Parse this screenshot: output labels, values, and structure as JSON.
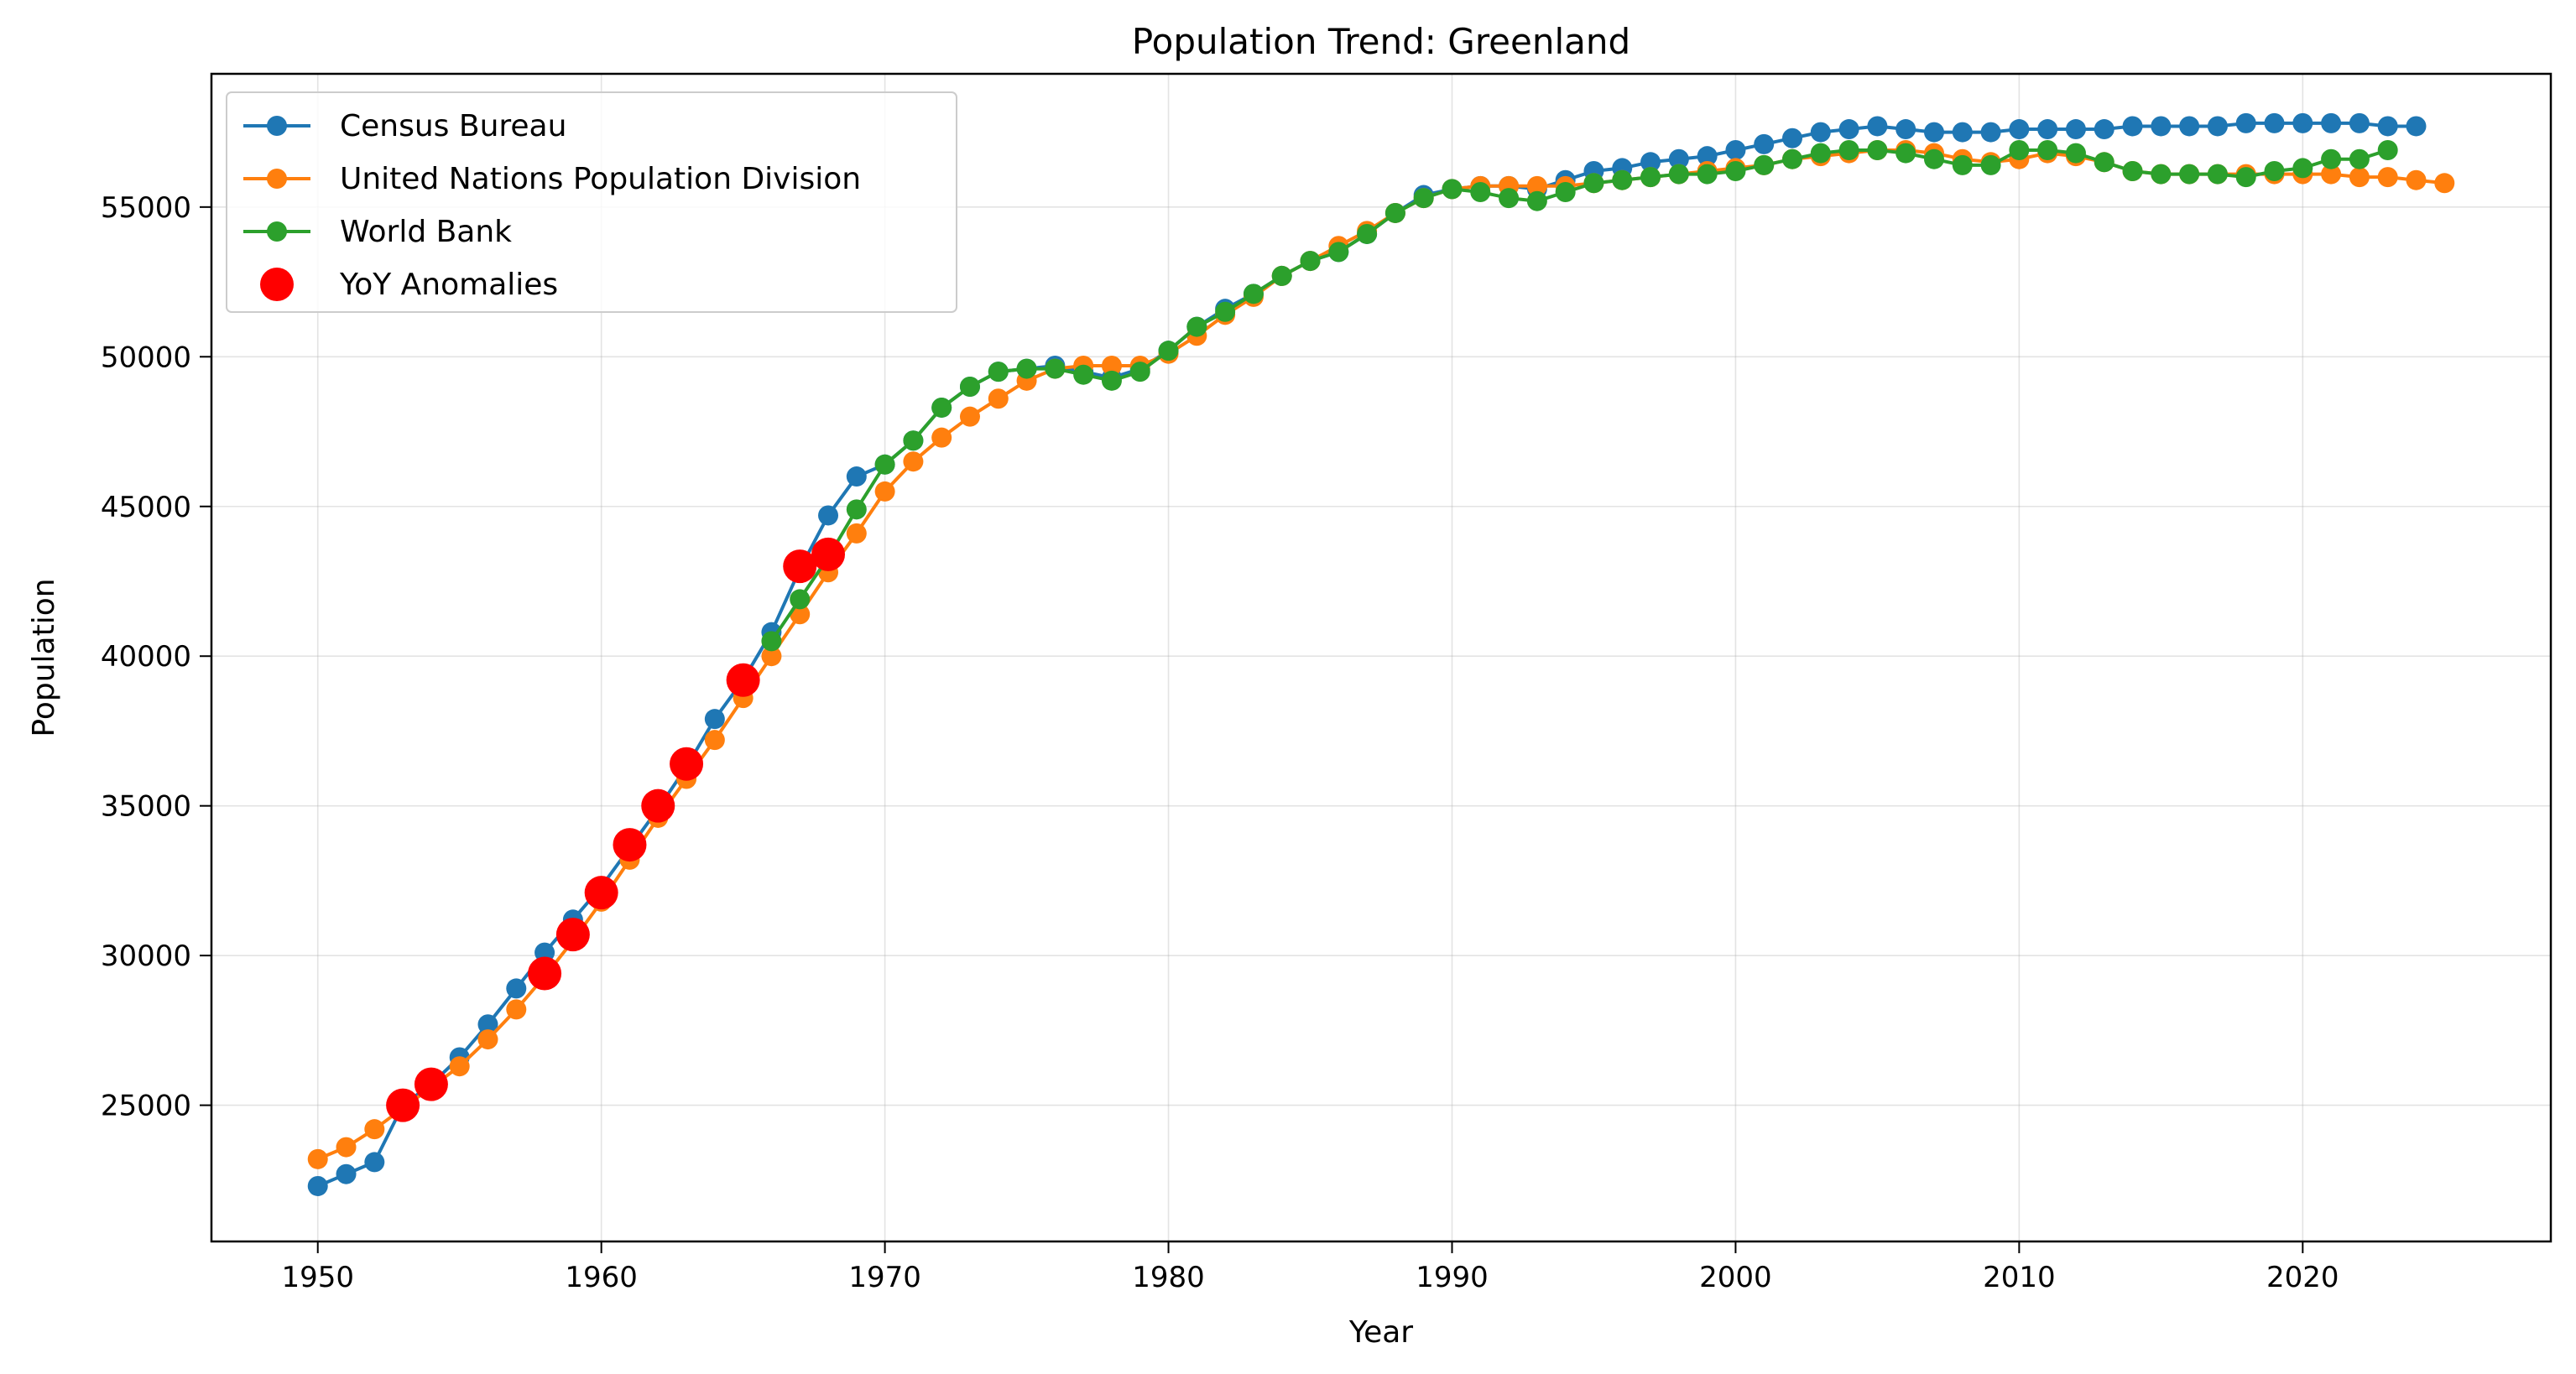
{
  "chart_data": {
    "type": "line",
    "title": "Population Trend: Greenland",
    "xlabel": "Year",
    "ylabel": "Population",
    "xlim": [
      1946.25,
      2028.75
    ],
    "ylim": [
      20450,
      59450
    ],
    "x_ticks": [
      1950,
      1960,
      1970,
      1980,
      1990,
      2000,
      2010,
      2020
    ],
    "y_ticks": [
      25000,
      30000,
      35000,
      40000,
      45000,
      50000,
      55000
    ],
    "grid": true,
    "legend_position": "top-left",
    "series": [
      {
        "name": "Census Bureau",
        "color": "#1f77b4",
        "x": [
          1950,
          1951,
          1952,
          1953,
          1954,
          1955,
          1956,
          1957,
          1958,
          1959,
          1960,
          1961,
          1962,
          1963,
          1964,
          1965,
          1966,
          1967,
          1968,
          1969,
          1970,
          1971,
          1972,
          1973,
          1974,
          1975,
          1976,
          1977,
          1978,
          1979,
          1980,
          1981,
          1982,
          1983,
          1984,
          1985,
          1986,
          1987,
          1988,
          1989,
          1990,
          1991,
          1992,
          1993,
          1994,
          1995,
          1996,
          1997,
          1998,
          1999,
          2000,
          2001,
          2002,
          2003,
          2004,
          2005,
          2006,
          2007,
          2008,
          2009,
          2010,
          2011,
          2012,
          2013,
          2014,
          2015,
          2016,
          2017,
          2018,
          2019,
          2020,
          2021,
          2022,
          2023,
          2024
        ],
        "y": [
          22300,
          22700,
          23100,
          25000,
          25700,
          26600,
          27700,
          28900,
          30100,
          31200,
          32300,
          33600,
          34900,
          36300,
          37900,
          39200,
          40800,
          42900,
          44700,
          46000,
          46400,
          47200,
          48300,
          49000,
          49500,
          49600,
          49700,
          49500,
          49300,
          49600,
          50200,
          51000,
          51600,
          52100,
          52700,
          53200,
          53500,
          54100,
          54800,
          55400,
          55600,
          55700,
          55700,
          55600,
          55900,
          56200,
          56300,
          56500,
          56600,
          56700,
          56900,
          57100,
          57300,
          57500,
          57600,
          57700,
          57600,
          57500,
          57500,
          57500,
          57600,
          57600,
          57600,
          57600,
          57700,
          57700,
          57700,
          57700,
          57800,
          57800,
          57800,
          57800,
          57800,
          57700,
          57700
        ]
      },
      {
        "name": "United Nations Population Division",
        "color": "#ff7f0e",
        "x": [
          1950,
          1951,
          1952,
          1953,
          1954,
          1955,
          1956,
          1957,
          1958,
          1959,
          1960,
          1961,
          1962,
          1963,
          1964,
          1965,
          1966,
          1967,
          1968,
          1969,
          1970,
          1971,
          1972,
          1973,
          1974,
          1975,
          1976,
          1977,
          1978,
          1979,
          1980,
          1981,
          1982,
          1983,
          1984,
          1985,
          1986,
          1987,
          1988,
          1989,
          1990,
          1991,
          1992,
          1993,
          1994,
          1995,
          1996,
          1997,
          1998,
          1999,
          2000,
          2001,
          2002,
          2003,
          2004,
          2005,
          2006,
          2007,
          2008,
          2009,
          2010,
          2011,
          2012,
          2013,
          2014,
          2015,
          2016,
          2017,
          2018,
          2019,
          2020,
          2021,
          2022,
          2023,
          2024,
          2025
        ],
        "y": [
          23200,
          23600,
          24200,
          24900,
          25600,
          26300,
          27200,
          28200,
          29300,
          30500,
          31800,
          33200,
          34600,
          35900,
          37200,
          38600,
          40000,
          41400,
          42800,
          44100,
          45500,
          46500,
          47300,
          48000,
          48600,
          49200,
          49600,
          49700,
          49700,
          49700,
          50100,
          50700,
          51400,
          52000,
          52700,
          53200,
          53700,
          54200,
          54800,
          55300,
          55600,
          55700,
          55700,
          55700,
          55700,
          55800,
          55900,
          56000,
          56100,
          56200,
          56300,
          56400,
          56600,
          56700,
          56800,
          56900,
          56900,
          56800,
          56600,
          56500,
          56600,
          56800,
          56700,
          56500,
          56200,
          56100,
          56100,
          56100,
          56100,
          56100,
          56100,
          56100,
          56000,
          56000,
          55900,
          55800
        ]
      },
      {
        "name": "World Bank",
        "color": "#2ca02c",
        "x": [
          1966,
          1967,
          1968,
          1969,
          1970,
          1971,
          1972,
          1973,
          1974,
          1975,
          1976,
          1977,
          1978,
          1979,
          1980,
          1981,
          1982,
          1983,
          1984,
          1985,
          1986,
          1987,
          1988,
          1989,
          1990,
          1991,
          1992,
          1993,
          1994,
          1995,
          1996,
          1997,
          1998,
          1999,
          2000,
          2001,
          2002,
          2003,
          2004,
          2005,
          2006,
          2007,
          2008,
          2009,
          2010,
          2011,
          2012,
          2013,
          2014,
          2015,
          2016,
          2017,
          2018,
          2019,
          2020,
          2021,
          2022,
          2023
        ],
        "y": [
          40500,
          41900,
          43300,
          44900,
          46400,
          47200,
          48300,
          49000,
          49500,
          49600,
          49600,
          49400,
          49200,
          49500,
          50200,
          51000,
          51500,
          52100,
          52700,
          53200,
          53500,
          54100,
          54800,
          55300,
          55600,
          55500,
          55300,
          55200,
          55500,
          55800,
          55900,
          56000,
          56100,
          56100,
          56200,
          56400,
          56600,
          56800,
          56900,
          56900,
          56800,
          56600,
          56400,
          56400,
          56900,
          56900,
          56800,
          56500,
          56200,
          56100,
          56100,
          56100,
          56000,
          56200,
          56300,
          56600,
          56600,
          56900
        ]
      }
    ],
    "anomalies": {
      "name": "YoY Anomalies",
      "color": "#ff0000",
      "x": [
        1953,
        1954,
        1958,
        1959,
        1960,
        1961,
        1962,
        1963,
        1965,
        1967,
        1968
      ],
      "y": [
        25000,
        25700,
        29400,
        30700,
        32100,
        33700,
        35000,
        36400,
        39200,
        43000,
        43400
      ]
    }
  }
}
